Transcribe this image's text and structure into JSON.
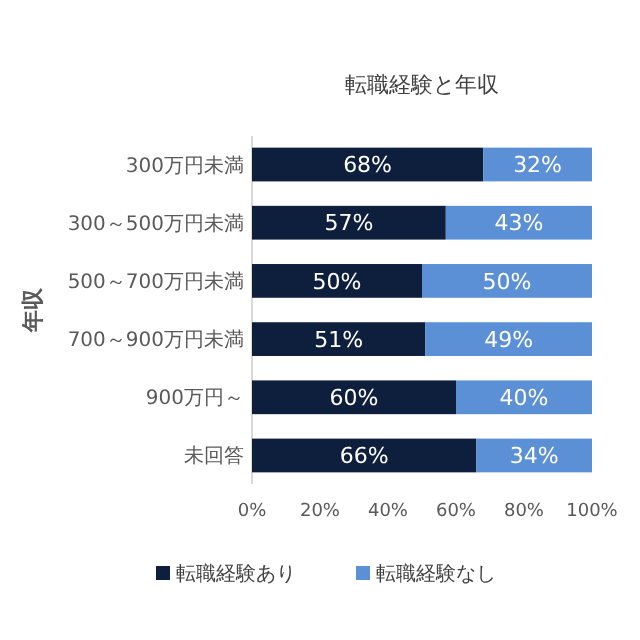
{
  "chart_data": {
    "type": "bar",
    "orientation": "horizontal",
    "stacked": true,
    "title": "転職経験と年収",
    "ylabel": "年収",
    "categories": [
      "300万円未満",
      "300～500万円未満",
      "500～700万円未満",
      "700～900万円未満",
      "900万円～",
      "未回答"
    ],
    "series": [
      {
        "name": "転職経験あり",
        "color": "#0e1e3d",
        "values": [
          68,
          57,
          50,
          51,
          60,
          66
        ],
        "value_labels": [
          "68%",
          "57%",
          "50%",
          "51%",
          "60%",
          "66%"
        ]
      },
      {
        "name": "転職経験なし",
        "color": "#5b8fd6",
        "values": [
          32,
          43,
          50,
          49,
          40,
          34
        ],
        "value_labels": [
          "32%",
          "43%",
          "50%",
          "49%",
          "40%",
          "34%"
        ]
      }
    ],
    "xlim": [
      0,
      100
    ],
    "xticks": [
      {
        "value": 0,
        "label": "0%"
      },
      {
        "value": 20,
        "label": "20%"
      },
      {
        "value": 40,
        "label": "40%"
      },
      {
        "value": 60,
        "label": "60%"
      },
      {
        "value": 80,
        "label": "80%"
      },
      {
        "value": 100,
        "label": "100%"
      }
    ],
    "grid": false,
    "legend": "bottom"
  }
}
